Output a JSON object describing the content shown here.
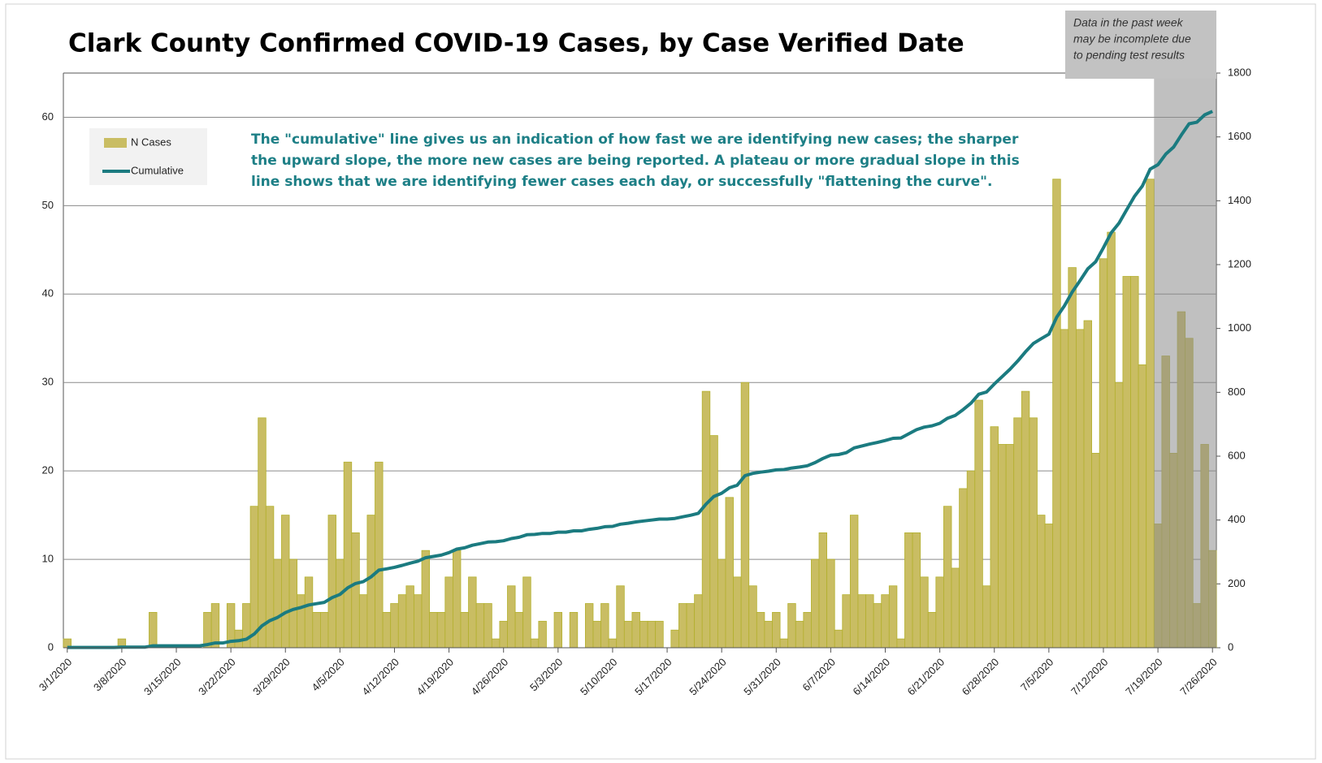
{
  "chart_data": {
    "type": "bar-line",
    "title": "Clark County Confirmed COVID-19 Cases, by Case Verified Date",
    "annotation": [
      "The \"cumulative\" line gives  us an indication of how fast we are identifying new cases; the sharper",
      "the upward slope, the more new cases are being reported. A plateau or more gradual slope in this",
      "line shows that we are identifying fewer cases each day, or successfully \"flattening the curve\"."
    ],
    "shade_note": [
      "Data in the past week",
      "may be incomplete due",
      "to pending test results"
    ],
    "categories": [
      "3/1/2020",
      null,
      null,
      null,
      null,
      null,
      null,
      "3/8/2020",
      null,
      null,
      null,
      null,
      null,
      null,
      "3/15/2020",
      null,
      null,
      null,
      null,
      null,
      null,
      "3/22/2020",
      null,
      null,
      null,
      null,
      null,
      null,
      "3/29/2020",
      null,
      null,
      null,
      null,
      null,
      null,
      "4/5/2020",
      null,
      null,
      null,
      null,
      null,
      null,
      "4/12/2020",
      null,
      null,
      null,
      null,
      null,
      null,
      "4/19/2020",
      null,
      null,
      null,
      null,
      null,
      null,
      "4/26/2020",
      null,
      null,
      null,
      null,
      null,
      null,
      "5/3/2020",
      null,
      null,
      null,
      null,
      null,
      null,
      "5/10/2020",
      null,
      null,
      null,
      null,
      null,
      null,
      "5/17/2020",
      null,
      null,
      null,
      null,
      null,
      null,
      "5/24/2020",
      null,
      null,
      null,
      null,
      null,
      null,
      "5/31/2020",
      null,
      null,
      null,
      null,
      null,
      null,
      "6/7/2020",
      null,
      null,
      null,
      null,
      null,
      null,
      "6/14/2020",
      null,
      null,
      null,
      null,
      null,
      null,
      "6/21/2020",
      null,
      null,
      null,
      null,
      null,
      null,
      "6/28/2020",
      null,
      null,
      null,
      null,
      null,
      null,
      "7/5/2020",
      null,
      null,
      null,
      null,
      null,
      null,
      "7/12/2020",
      null,
      null,
      null,
      null,
      null,
      null,
      "7/19/2020",
      null,
      null,
      null,
      null,
      null,
      null,
      "7/26/2020"
    ],
    "series": [
      {
        "name": "N Cases",
        "color": "#c9bd63",
        "values": [
          1,
          0,
          0,
          0,
          0,
          0,
          0,
          1,
          0,
          0,
          0,
          4,
          0,
          0,
          0,
          0,
          0,
          0,
          4,
          5,
          0,
          5,
          2,
          5,
          16,
          26,
          16,
          10,
          15,
          10,
          6,
          8,
          4,
          4,
          15,
          10,
          21,
          13,
          6,
          15,
          21,
          4,
          5,
          6,
          7,
          6,
          11,
          4,
          4,
          8,
          11,
          4,
          8,
          5,
          5,
          1,
          3,
          7,
          4,
          8,
          1,
          3,
          0,
          4,
          0,
          4,
          0,
          5,
          3,
          5,
          1,
          7,
          3,
          4,
          3,
          3,
          3,
          0,
          2,
          5,
          5,
          6,
          29,
          24,
          10,
          17,
          8,
          30,
          7,
          4,
          3,
          4,
          1,
          5,
          3,
          4,
          10,
          13,
          10,
          2,
          6,
          15,
          6,
          6,
          5,
          6,
          7,
          1,
          13,
          13,
          8,
          4,
          8,
          16,
          9,
          18,
          20,
          28,
          7,
          25,
          23,
          23,
          26,
          29,
          26,
          15,
          14,
          53,
          36,
          43,
          36,
          37,
          22,
          44,
          47,
          30,
          42,
          42,
          32,
          53,
          14,
          33,
          22,
          38,
          35,
          5,
          23,
          11
        ]
      },
      {
        "name": "Cumulative",
        "color": "#1b7b80",
        "axis": "y2",
        "values": [
          1,
          1,
          1,
          1,
          1,
          1,
          1,
          2,
          2,
          2,
          2,
          6,
          6,
          6,
          6,
          6,
          6,
          6,
          10,
          15,
          15,
          20,
          22,
          27,
          43,
          69,
          85,
          95,
          110,
          120,
          126,
          134,
          138,
          142,
          157,
          167,
          188,
          201,
          207,
          222,
          243,
          247,
          252,
          258,
          265,
          271,
          282,
          286,
          290,
          298,
          309,
          313,
          321,
          326,
          331,
          332,
          335,
          342,
          346,
          354,
          355,
          358,
          358,
          362,
          362,
          366,
          366,
          371,
          374,
          379,
          380,
          387,
          390,
          394,
          397,
          400,
          403,
          403,
          405,
          410,
          415,
          421,
          450,
          474,
          484,
          501,
          509,
          539,
          546,
          550,
          553,
          557,
          558,
          563,
          566,
          570,
          580,
          593,
          603,
          605,
          611,
          626,
          632,
          638,
          643,
          649,
          656,
          657,
          670,
          683,
          691,
          695,
          703,
          719,
          728,
          746,
          766,
          794,
          801,
          826,
          849,
          872,
          898,
          927,
          953,
          968,
          982,
          1035,
          1071,
          1114,
          1150,
          1187,
          1209,
          1253,
          1300,
          1330,
          1372,
          1414,
          1446,
          1499,
          1513,
          1546,
          1568,
          1606,
          1641,
          1646,
          1669,
          1680
        ]
      }
    ],
    "ylim": [
      0,
      65
    ],
    "yticks": [
      0,
      10,
      20,
      30,
      40,
      50,
      60
    ],
    "y2lim": [
      0,
      1800
    ],
    "y2ticks": [
      0,
      200,
      400,
      600,
      800,
      1000,
      1200,
      1400,
      1600,
      1800
    ],
    "grid": true,
    "legend": "upper left"
  }
}
